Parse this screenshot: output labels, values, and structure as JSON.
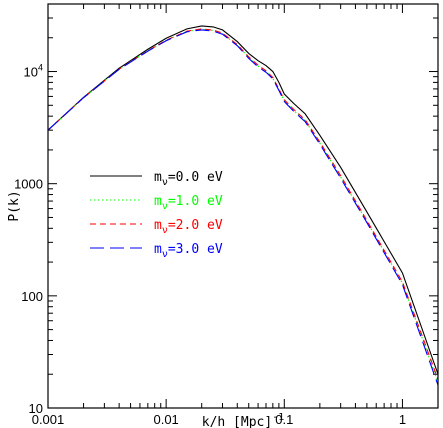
{
  "chart_data": {
    "type": "line",
    "xlabel_main": "k/h [Mpc]",
    "xlabel_sup": "-1",
    "ylabel": "P(k)",
    "xscale": "log",
    "yscale": "log",
    "xlim": [
      0.001,
      2.0
    ],
    "ylim": [
      10,
      40000
    ],
    "grid": false,
    "legend_placement": "center-left",
    "x_ticks": [
      {
        "value": 0.001,
        "label": "0.001"
      },
      {
        "value": 0.01,
        "label": "0.01"
      },
      {
        "value": 0.1,
        "label": "0.1"
      },
      {
        "value": 1,
        "label": "1"
      }
    ],
    "y_ticks": [
      {
        "value": 10,
        "label": "10"
      },
      {
        "value": 100,
        "label": "100"
      },
      {
        "value": 1000,
        "label": "1000"
      },
      {
        "value": 10000,
        "label": "10",
        "sup": "4"
      }
    ],
    "series": [
      {
        "name_prefix": "m",
        "name_sub": "ν",
        "name_suffix": "=0.0  eV",
        "color": "#000000",
        "dash": "",
        "x": [
          0.001,
          0.002,
          0.004,
          0.007,
          0.01,
          0.015,
          0.02,
          0.025,
          0.03,
          0.04,
          0.05,
          0.06,
          0.07,
          0.08,
          0.09,
          0.1,
          0.12,
          0.15,
          0.2,
          0.3,
          0.5,
          1.0,
          2.0
        ],
        "y": [
          3000,
          5900,
          10700,
          15800,
          19800,
          24000,
          25500,
          25000,
          23500,
          18500,
          14500,
          12500,
          11300,
          10000,
          8000,
          6300,
          5200,
          4200,
          2700,
          1400,
          560,
          160,
          20
        ]
      },
      {
        "name_prefix": "m",
        "name_sub": "ν",
        "name_suffix": "=1.0  eV",
        "color": "#00ff00",
        "dash": "1.5,2.5",
        "x": [
          0.001,
          0.002,
          0.004,
          0.007,
          0.01,
          0.015,
          0.02,
          0.025,
          0.03,
          0.04,
          0.05,
          0.06,
          0.07,
          0.08,
          0.09,
          0.1,
          0.12,
          0.15,
          0.2,
          0.3,
          0.5,
          1.0,
          2.0
        ],
        "y": [
          3000,
          5850,
          10500,
          15300,
          19000,
          22800,
          23800,
          23200,
          21800,
          17200,
          13300,
          11200,
          10000,
          8700,
          6900,
          5500,
          4500,
          3650,
          2300,
          1150,
          460,
          130,
          17
        ]
      },
      {
        "name_prefix": "m",
        "name_sub": "ν",
        "name_suffix": "=2.0  eV",
        "color": "#ff0000",
        "dash": "6,4",
        "x": [
          0.001,
          0.002,
          0.004,
          0.007,
          0.01,
          0.015,
          0.02,
          0.025,
          0.03,
          0.04,
          0.05,
          0.06,
          0.07,
          0.08,
          0.09,
          0.1,
          0.12,
          0.15,
          0.2,
          0.3,
          0.5,
          1.0,
          2.0
        ],
        "y": [
          3000,
          5850,
          10500,
          15300,
          19000,
          22900,
          24000,
          23400,
          22000,
          17400,
          13500,
          11400,
          10150,
          8850,
          7000,
          5600,
          4600,
          3720,
          2350,
          1180,
          470,
          133,
          18
        ]
      },
      {
        "name_prefix": "m",
        "name_sub": "ν",
        "name_suffix": "=3.0  eV",
        "color": "#0000ff",
        "dash": "14,6",
        "x": [
          0.001,
          0.002,
          0.004,
          0.007,
          0.01,
          0.015,
          0.02,
          0.025,
          0.03,
          0.04,
          0.05,
          0.06,
          0.07,
          0.08,
          0.09,
          0.1,
          0.12,
          0.15,
          0.2,
          0.3,
          0.5,
          1.0,
          2.0
        ],
        "y": [
          3000,
          5850,
          10450,
          15200,
          18800,
          22600,
          23500,
          22900,
          21500,
          17000,
          13100,
          11000,
          9850,
          8600,
          6800,
          5400,
          4420,
          3580,
          2250,
          1120,
          450,
          126,
          16
        ]
      }
    ]
  }
}
